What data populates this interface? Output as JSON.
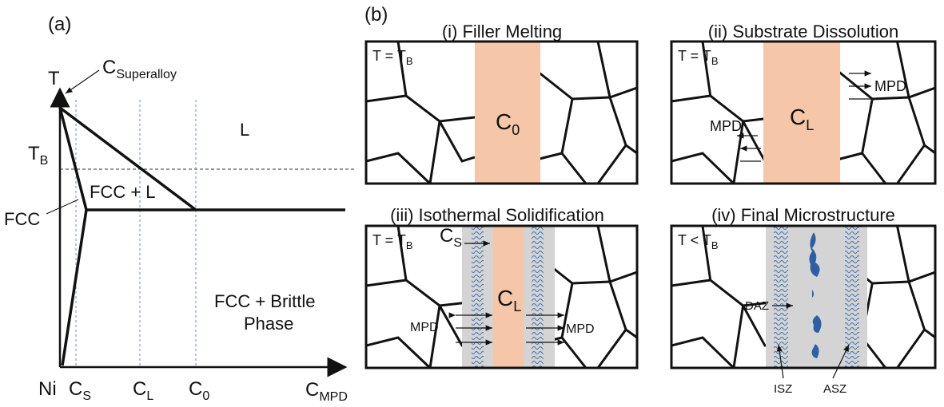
{
  "panel_a": {
    "label": "(a)",
    "y_axis": "T",
    "x_axis": {
      "main": "C",
      "sub": "MPD"
    },
    "origin": "Ni",
    "x_ticks": [
      {
        "main": "C",
        "sub": "S"
      },
      {
        "main": "C",
        "sub": "L"
      },
      {
        "main": "C",
        "sub": "0"
      }
    ],
    "tb": {
      "main": "T",
      "sub": "B"
    },
    "superalloy": {
      "main": "C",
      "sub": "Superalloy"
    },
    "regions": {
      "liquid": "L",
      "fcc_l": "FCC + L",
      "fcc": "FCC",
      "fcc_brittle": [
        "FCC + Brittle",
        "Phase"
      ]
    }
  },
  "panel_b": {
    "label": "(b)",
    "stages": [
      {
        "title": "(i) Filler Melting",
        "temp": {
          "main": "T = T",
          "sub": "B"
        },
        "center": {
          "main": "C",
          "sub": "0"
        }
      },
      {
        "title": "(ii) Substrate Dissolution",
        "temp": {
          "main": "T = T",
          "sub": "B"
        },
        "center": {
          "main": "C",
          "sub": "L"
        },
        "labels": [
          "MPD",
          "MPD"
        ]
      },
      {
        "title": "(iii) Isothermal Solidification",
        "temp": {
          "main": "T = T",
          "sub": "B"
        },
        "center": {
          "main": "C",
          "sub": "L"
        },
        "solid": {
          "main": "C",
          "sub": "S"
        },
        "labels": [
          "MPD",
          "MPD"
        ]
      },
      {
        "title": "(iv) Final Microstructure",
        "temp": {
          "main": "T < T",
          "sub": "B"
        },
        "labels": [
          "DAZ",
          "ISZ",
          "ASZ"
        ]
      }
    ]
  }
}
